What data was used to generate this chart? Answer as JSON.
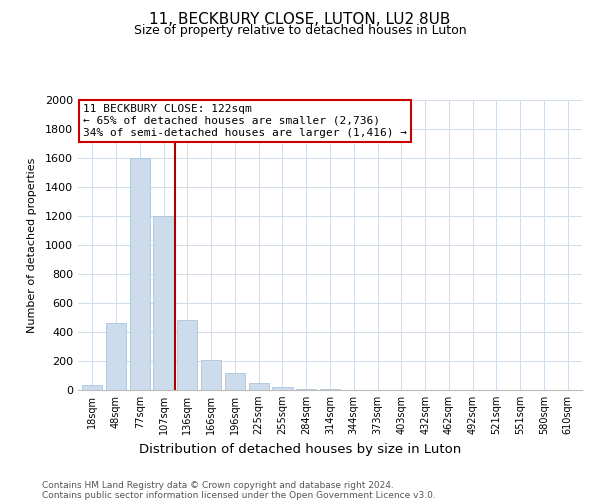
{
  "title_line1": "11, BECKBURY CLOSE, LUTON, LU2 8UB",
  "title_line2": "Size of property relative to detached houses in Luton",
  "xlabel": "Distribution of detached houses by size in Luton",
  "ylabel": "Number of detached properties",
  "bar_color": "#ccdcec",
  "bar_edge_color": "#aac4dc",
  "annotation_line1": "11 BECKBURY CLOSE: 122sqm",
  "annotation_line2": "← 65% of detached houses are smaller (2,736)",
  "annotation_line3": "34% of semi-detached houses are larger (1,416) →",
  "marker_color": "#aa0000",
  "categories": [
    "18sqm",
    "48sqm",
    "77sqm",
    "107sqm",
    "136sqm",
    "166sqm",
    "196sqm",
    "225sqm",
    "255sqm",
    "284sqm",
    "314sqm",
    "344sqm",
    "373sqm",
    "403sqm",
    "432sqm",
    "462sqm",
    "492sqm",
    "521sqm",
    "551sqm",
    "580sqm",
    "610sqm"
  ],
  "values": [
    35,
    460,
    1600,
    1200,
    485,
    210,
    115,
    45,
    20,
    10,
    5,
    2,
    0,
    0,
    0,
    0,
    0,
    0,
    0,
    0,
    0
  ],
  "ylim": [
    0,
    2000
  ],
  "yticks": [
    0,
    200,
    400,
    600,
    800,
    1000,
    1200,
    1400,
    1600,
    1800,
    2000
  ],
  "marker_bar_index": 4,
  "footer_line1": "Contains HM Land Registry data © Crown copyright and database right 2024.",
  "footer_line2": "Contains public sector information licensed under the Open Government Licence v3.0.",
  "annotation_box_facecolor": "#ffffff",
  "annotation_box_edgecolor": "#cc0000",
  "grid_color": "#d0dce8",
  "fig_width": 6.0,
  "fig_height": 5.0,
  "dpi": 100
}
